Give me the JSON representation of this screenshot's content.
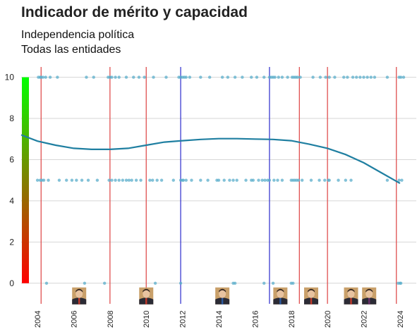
{
  "chart_data": {
    "type": "scatter",
    "title": "Indicador de mérito y capacidad",
    "subtitle_lines": [
      "Independencia política",
      "Todas las entidades"
    ],
    "xlim": [
      2003.1,
      2024.9
    ],
    "ylim": [
      -1.0,
      10.5
    ],
    "y_ticks": [
      0,
      2,
      4,
      6,
      8,
      10
    ],
    "x_ticks": [
      2004,
      2006,
      2008,
      2010,
      2012,
      2014,
      2016,
      2018,
      2020,
      2022,
      2024
    ],
    "grid": true,
    "legend": "none",
    "colors": {
      "points": "#5aaecb",
      "trend": "#1f7fa1",
      "government_change": "#e05050",
      "pp_government_period": "#3a3ad0",
      "gradient_top": "#00ff00",
      "gradient_bottom": "#ff0000"
    },
    "vertical_lines_red": [
      2004.2,
      2008.0,
      2010.0,
      2018.45,
      2020.0,
      2023.8
    ],
    "vertical_lines_blue": [
      2011.9,
      2016.8
    ],
    "trend_line": {
      "x": [
        2003.1,
        2004,
        2005,
        2006,
        2007,
        2008,
        2009,
        2010,
        2011,
        2012,
        2013,
        2014,
        2015,
        2016,
        2017,
        2018,
        2019,
        2020,
        2021,
        2022,
        2023,
        2024
      ],
      "y": [
        7.2,
        6.9,
        6.7,
        6.55,
        6.5,
        6.5,
        6.55,
        6.7,
        6.85,
        6.92,
        6.98,
        7.02,
        7.02,
        7.0,
        6.98,
        6.92,
        6.75,
        6.55,
        6.25,
        5.85,
        5.35,
        4.85
      ]
    },
    "series": [
      {
        "values_y": 10,
        "x": [
          2004.05,
          2004.15,
          2004.2,
          2004.3,
          2004.45,
          2004.7,
          2005.1,
          2006.7,
          2007.1,
          2007.9,
          2008.0,
          2008.1,
          2008.3,
          2008.5,
          2008.9,
          2009.3,
          2009.6,
          2009.9,
          2010.4,
          2011.1,
          2011.8,
          2011.9,
          2012.0,
          2012.1,
          2012.2,
          2012.4,
          2013.0,
          2013.5,
          2014.2,
          2014.5,
          2014.9,
          2015.3,
          2015.8,
          2016.1,
          2016.5,
          2016.8,
          2016.9,
          2017.0,
          2017.1,
          2017.3,
          2017.5,
          2017.8,
          2018.05,
          2018.15,
          2018.25,
          2018.35,
          2018.5,
          2019.2,
          2019.6,
          2019.9,
          2020.1,
          2020.4,
          2020.9,
          2021.1,
          2021.4,
          2021.6,
          2021.8,
          2022.0,
          2022.2,
          2022.4,
          2022.6,
          2023.3,
          2023.95,
          2024.05,
          2024.2
        ]
      },
      {
        "values_y": 5,
        "x": [
          2004.0,
          2004.15,
          2004.25,
          2004.35,
          2004.6,
          2005.2,
          2005.6,
          2005.9,
          2006.15,
          2006.45,
          2006.8,
          2007.3,
          2007.95,
          2008.1,
          2008.3,
          2008.5,
          2008.7,
          2008.9,
          2009.05,
          2009.2,
          2009.45,
          2009.7,
          2010.2,
          2010.35,
          2010.6,
          2010.85,
          2011.5,
          2011.9,
          2012.0,
          2012.05,
          2012.2,
          2012.5,
          2013.0,
          2013.4,
          2013.9,
          2014.0,
          2014.3,
          2014.6,
          2014.8,
          2015.0,
          2015.5,
          2015.8,
          2015.9,
          2016.2,
          2016.4,
          2016.55,
          2016.7,
          2016.8,
          2017.05,
          2017.25,
          2017.5,
          2018.0,
          2018.1,
          2018.2,
          2018.3,
          2018.4,
          2018.6,
          2019.1,
          2019.55,
          2019.85,
          2020.05,
          2020.1,
          2020.6,
          2021.0,
          2021.3,
          2023.3,
          2023.95,
          2024.1
        ]
      },
      {
        "values_y": 0,
        "x": [
          2004.5,
          2006.6,
          2007.7,
          2010.5,
          2011.9,
          2014.8,
          2014.9,
          2016.5,
          2017.0,
          2018.0,
          2018.1,
          2023.9,
          2024.0,
          2024.05
        ]
      }
    ],
    "portraits": [
      {
        "x": 2006.3,
        "party": "psoe"
      },
      {
        "x": 2010.0,
        "party": "psoe"
      },
      {
        "x": 2014.2,
        "party": "pp"
      },
      {
        "x": 2017.4,
        "party": "pp"
      },
      {
        "x": 2019.1,
        "party": "psoe"
      },
      {
        "x": 2021.3,
        "party": "psoe"
      },
      {
        "x": 2022.3,
        "party": "podemos"
      }
    ]
  }
}
